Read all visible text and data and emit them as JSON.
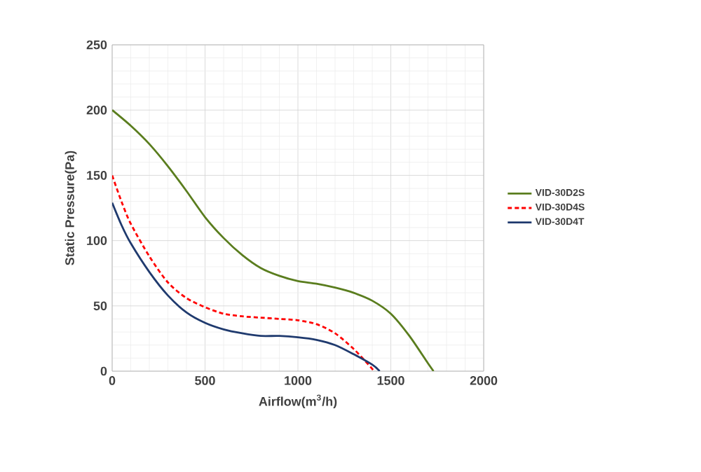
{
  "chart_data": {
    "type": "line",
    "xlabel": "Airflow(m$^{3}$/h)",
    "ylabel": "Static Pressure(Pa)",
    "xlim": [
      0,
      2000
    ],
    "xticks": [
      0,
      500,
      1000,
      1500,
      2000
    ],
    "ylim": [
      0,
      250
    ],
    "yticks": [
      0,
      50,
      100,
      150,
      200,
      250
    ],
    "grid": true,
    "legend": "right",
    "series": [
      {
        "name": "VID-30D2S",
        "color": "#5a7d1e",
        "line_style": "solid",
        "x": [
          0,
          100,
          200,
          300,
          400,
          500,
          600,
          700,
          800,
          900,
          1000,
          1100,
          1200,
          1300,
          1400,
          1500,
          1600,
          1700,
          1730
        ],
        "values": [
          200,
          188,
          174,
          157,
          138,
          118,
          102,
          89,
          79,
          73,
          69,
          67,
          64,
          60,
          54,
          44,
          27,
          6,
          0
        ]
      },
      {
        "name": "VID-30D4S",
        "color": "#ff0000",
        "line_style": "dashed",
        "x": [
          0,
          50,
          100,
          200,
          300,
          400,
          500,
          600,
          700,
          800,
          900,
          1000,
          1100,
          1200,
          1300,
          1380,
          1410
        ],
        "values": [
          150,
          130,
          113,
          88,
          68,
          56,
          49,
          44,
          42,
          41,
          40,
          39,
          36,
          29,
          17,
          5,
          0
        ]
      },
      {
        "name": "VID-30D4T",
        "color": "#1f3a6e",
        "line_style": "solid",
        "x": [
          0,
          50,
          100,
          200,
          300,
          400,
          500,
          600,
          700,
          800,
          900,
          1000,
          1100,
          1200,
          1300,
          1400,
          1440
        ],
        "values": [
          129,
          112,
          98,
          76,
          58,
          45,
          37,
          32,
          29,
          27,
          27,
          26,
          24,
          20,
          13,
          5,
          0
        ]
      }
    ]
  }
}
